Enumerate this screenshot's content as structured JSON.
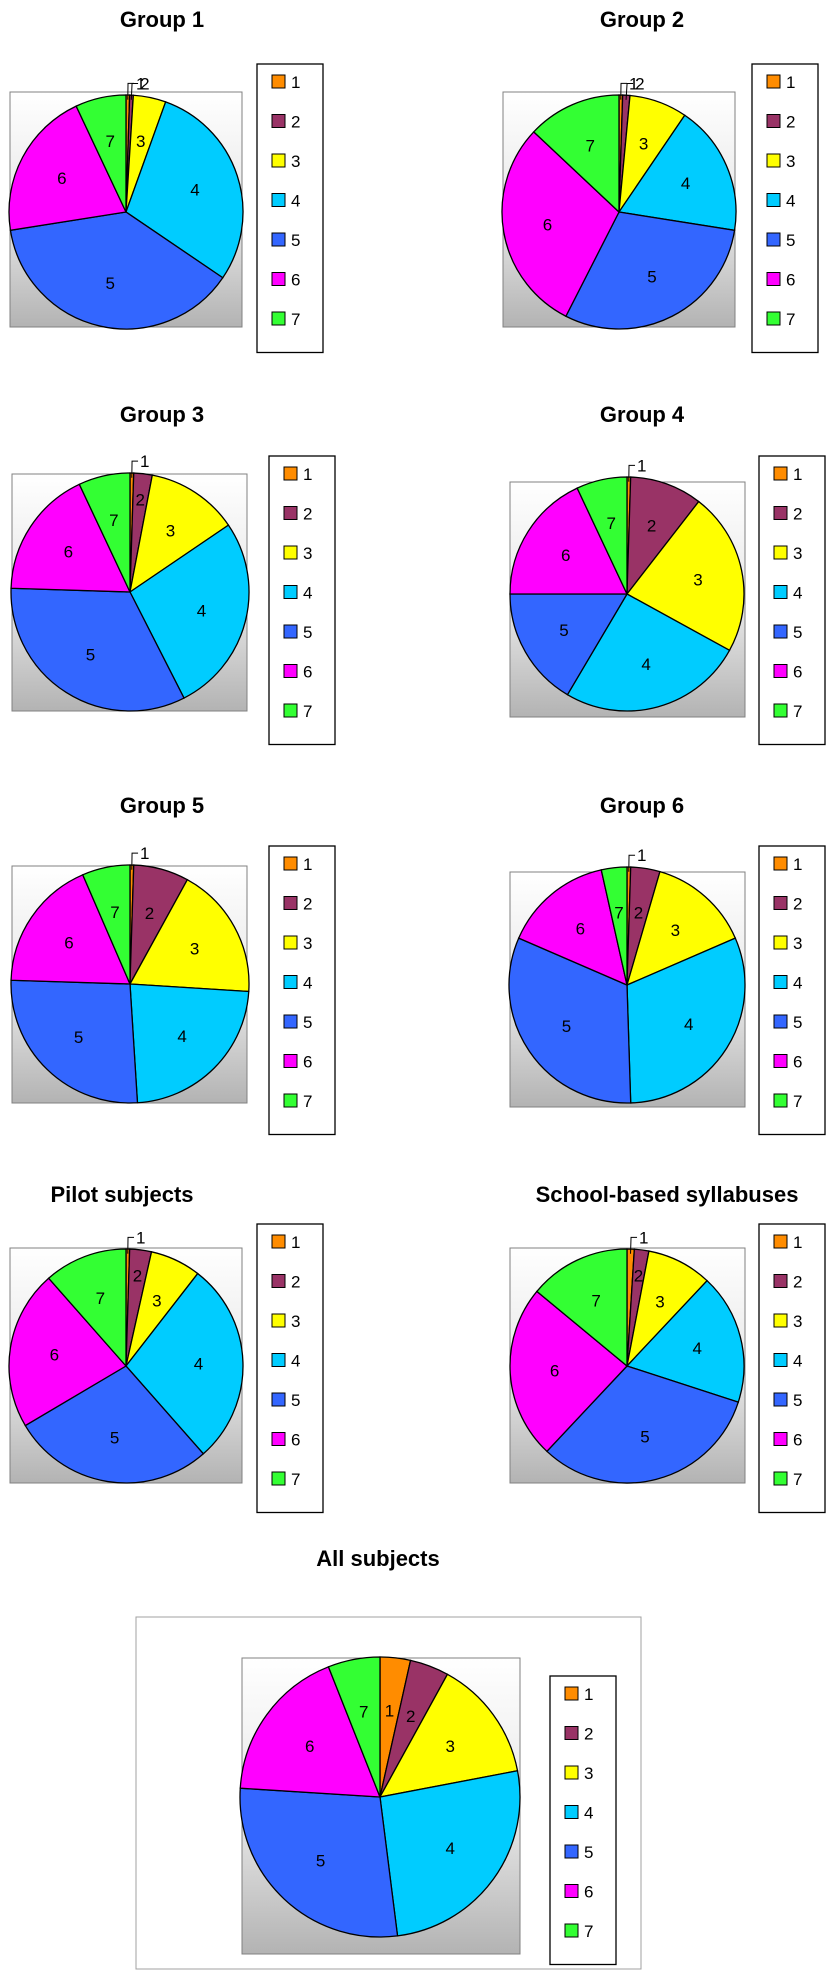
{
  "legend": {
    "entries": [
      {
        "name": "1",
        "color": "#FF8C00"
      },
      {
        "name": "2",
        "color": "#993366"
      },
      {
        "name": "3",
        "color": "#FFFF00"
      },
      {
        "name": "4",
        "color": "#00CCFF"
      },
      {
        "name": "5",
        "color": "#3366FF"
      },
      {
        "name": "6",
        "color": "#FF00FF"
      },
      {
        "name": "7",
        "color": "#33FF33"
      }
    ]
  },
  "chart_data": [
    {
      "type": "pie",
      "title": "Group 1",
      "categories": [
        "1",
        "2",
        "3",
        "4",
        "5",
        "6",
        "7"
      ],
      "values": [
        0.5,
        0.5,
        4.5,
        29,
        38,
        20.5,
        7
      ],
      "legend": "right"
    },
    {
      "type": "pie",
      "title": "Group 2",
      "categories": [
        "1",
        "2",
        "3",
        "4",
        "5",
        "6",
        "7"
      ],
      "values": [
        0.5,
        1,
        8,
        18,
        30,
        29.5,
        13
      ],
      "legend": "right"
    },
    {
      "type": "pie",
      "title": "Group 3",
      "categories": [
        "1",
        "2",
        "3",
        "4",
        "5",
        "6",
        "7"
      ],
      "values": [
        0.5,
        2.5,
        12.5,
        27,
        33,
        17.5,
        7
      ],
      "legend": "right"
    },
    {
      "type": "pie",
      "title": "Group 4",
      "categories": [
        "1",
        "2",
        "3",
        "4",
        "5",
        "6",
        "7"
      ],
      "values": [
        0.5,
        10,
        22.5,
        25.5,
        16.5,
        18,
        7
      ],
      "legend": "right"
    },
    {
      "type": "pie",
      "title": "Group 5",
      "categories": [
        "1",
        "2",
        "3",
        "4",
        "5",
        "6",
        "7"
      ],
      "values": [
        0.5,
        7.5,
        18,
        23,
        26.5,
        18,
        6.5
      ],
      "legend": "right"
    },
    {
      "type": "pie",
      "title": "Group 6",
      "categories": [
        "1",
        "2",
        "3",
        "4",
        "5",
        "6",
        "7"
      ],
      "values": [
        0.5,
        4,
        14,
        31,
        32,
        15,
        3.5
      ],
      "legend": "right"
    },
    {
      "type": "pie",
      "title": "Pilot subjects",
      "categories": [
        "1",
        "2",
        "3",
        "4",
        "5",
        "6",
        "7"
      ],
      "values": [
        0.5,
        3,
        7,
        28,
        28,
        22,
        11.5
      ],
      "legend": "right"
    },
    {
      "type": "pie",
      "title": "School-based syllabuses",
      "categories": [
        "1",
        "2",
        "3",
        "4",
        "5",
        "6",
        "7"
      ],
      "values": [
        1,
        2,
        9,
        18,
        32,
        24,
        14
      ],
      "legend": "right"
    },
    {
      "type": "pie",
      "title": "All subjects",
      "categories": [
        "1",
        "2",
        "3",
        "4",
        "5",
        "6",
        "7"
      ],
      "values": [
        3.5,
        4.5,
        14,
        26,
        28,
        18,
        6
      ],
      "legend": "right"
    }
  ]
}
